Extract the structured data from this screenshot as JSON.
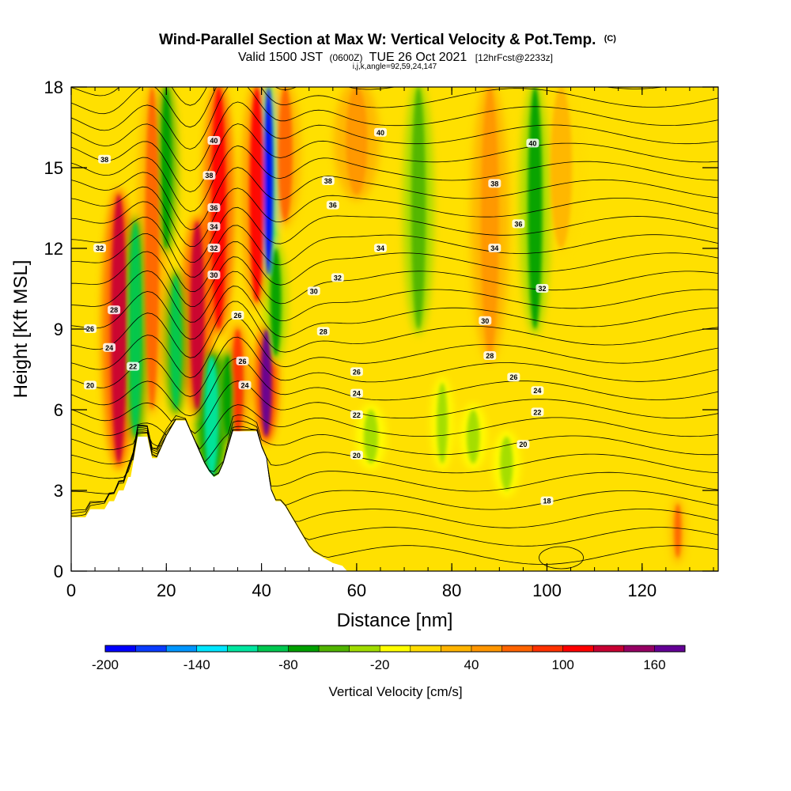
{
  "chart_data": {
    "type": "heatmap",
    "title": "Wind-Parallel Section at Max W: Vertical Velocity & Pot.Temp.",
    "title_suffix": "(C)",
    "subtitle_parts": {
      "valid": "Valid 1500 JST",
      "utc": "(0600Z)",
      "date": "TUE 26 Oct 2021",
      "fcst": "[12hrFcst@2233z]"
    },
    "subtitle2": "i,j,k,angle=92,59,24,147",
    "xlabel": "Distance [nm]",
    "ylabel": "Height [Kft MSL]",
    "xlim": [
      0,
      136
    ],
    "ylim": [
      0,
      18
    ],
    "x_ticks": [
      "0",
      "20",
      "40",
      "60",
      "80",
      "100",
      "120"
    ],
    "y_ticks": [
      "0",
      "3",
      "6",
      "9",
      "12",
      "15",
      "18"
    ],
    "colorbar": {
      "label": "Vertical Velocity [cm/s]",
      "range": [
        -200,
        180
      ],
      "tick_labels": [
        "-200",
        "-140",
        "-80",
        "-20",
        "40",
        "100",
        "160"
      ],
      "colors": [
        "#0000ff",
        "#0a3cff",
        "#0096ff",
        "#00e6ff",
        "#00e6a0",
        "#00c850",
        "#00a000",
        "#50b400",
        "#a0dc00",
        "#ffff00",
        "#ffdc00",
        "#ffb400",
        "#ff9600",
        "#ff6400",
        "#ff3200",
        "#ff0000",
        "#c80032",
        "#960064",
        "#640096"
      ]
    },
    "terrain": [
      [
        0,
        2
      ],
      [
        3,
        2
      ],
      [
        4,
        2.3
      ],
      [
        7,
        2.3
      ],
      [
        8,
        2.6
      ],
      [
        9,
        2.6
      ],
      [
        10,
        3
      ],
      [
        11,
        3
      ],
      [
        12,
        3.5
      ],
      [
        12.5,
        3.5
      ],
      [
        13,
        4
      ],
      [
        13.5,
        4.5
      ],
      [
        14,
        5
      ],
      [
        16,
        5
      ],
      [
        16.5,
        4.6
      ],
      [
        17,
        4.2
      ],
      [
        18,
        4.2
      ],
      [
        19,
        4.6
      ],
      [
        20,
        5
      ],
      [
        21,
        5.3
      ],
      [
        22,
        5.6
      ],
      [
        24,
        5.6
      ],
      [
        25,
        5.2
      ],
      [
        26,
        4.8
      ],
      [
        27,
        4.4
      ],
      [
        28,
        4.0
      ],
      [
        29,
        3.7
      ],
      [
        30,
        3.5
      ],
      [
        31,
        3.6
      ],
      [
        32,
        4.0
      ],
      [
        33,
        4.6
      ],
      [
        34,
        5.2
      ],
      [
        39,
        5.2
      ],
      [
        40,
        4.6
      ],
      [
        41,
        4.2
      ],
      [
        41.5,
        3.5
      ],
      [
        42,
        3.0
      ],
      [
        43,
        2.6
      ],
      [
        44,
        2.6
      ],
      [
        45,
        2.4
      ],
      [
        46,
        2.1
      ],
      [
        47,
        1.8
      ],
      [
        48,
        1.5
      ],
      [
        49,
        1.2
      ],
      [
        50,
        0.9
      ],
      [
        51,
        0.7
      ],
      [
        53,
        0.5
      ],
      [
        55,
        0.3
      ],
      [
        57,
        0.2
      ],
      [
        58,
        0
      ],
      [
        136,
        0
      ]
    ],
    "updrafts": [
      {
        "x": 10,
        "y0": 4,
        "y1": 14,
        "w": 120,
        "width": 2.2
      },
      {
        "x": 17,
        "y0": 6,
        "y1": 18,
        "w": 60,
        "width": 2.0
      },
      {
        "x": 26.5,
        "y0": 6,
        "y1": 13,
        "w": 130,
        "width": 2.0
      },
      {
        "x": 31,
        "y0": 9,
        "y1": 18,
        "w": 110,
        "width": 2.0
      },
      {
        "x": 35,
        "y0": 5,
        "y1": 9,
        "w": 90,
        "width": 1.6
      },
      {
        "x": 41,
        "y0": 5,
        "y1": 9,
        "w": 160,
        "width": 1.5
      },
      {
        "x": 39,
        "y0": 10,
        "y1": 18,
        "w": 100,
        "width": 2.0
      },
      {
        "x": 45,
        "y0": 13,
        "y1": 18,
        "w": 70,
        "width": 2.0
      },
      {
        "x": 60,
        "y0": 14,
        "y1": 18,
        "w": 45,
        "width": 3.0
      },
      {
        "x": 88,
        "y0": 8,
        "y1": 18,
        "w": 40,
        "width": 2.5
      },
      {
        "x": 103,
        "y0": 12,
        "y1": 18,
        "w": 35,
        "width": 3.0
      },
      {
        "x": 127.5,
        "y0": 0.5,
        "y1": 2.5,
        "w": 60,
        "width": 0.8
      }
    ],
    "downdrafts": [
      {
        "x": 13.5,
        "y0": 5,
        "y1": 13,
        "w": -90,
        "width": 1.8
      },
      {
        "x": 20,
        "y0": 12,
        "y1": 18,
        "w": -80,
        "width": 1.4
      },
      {
        "x": 22,
        "y0": 6,
        "y1": 11,
        "w": -90,
        "width": 1.6
      },
      {
        "x": 29.5,
        "y0": 3.5,
        "y1": 8,
        "w": -110,
        "width": 2.0
      },
      {
        "x": 33,
        "y0": 5,
        "y1": 8,
        "w": -80,
        "width": 1.5
      },
      {
        "x": 41.5,
        "y0": 11,
        "y1": 18,
        "w": -200,
        "width": 1.2
      },
      {
        "x": 43,
        "y0": 8,
        "y1": 12,
        "w": -70,
        "width": 1.5
      },
      {
        "x": 73,
        "y0": 9,
        "y1": 18,
        "w": -60,
        "width": 2.0
      },
      {
        "x": 97.5,
        "y0": 9,
        "y1": 18,
        "w": -70,
        "width": 2.0
      },
      {
        "x": 63,
        "y0": 4,
        "y1": 6,
        "w": -30,
        "width": 2.0
      },
      {
        "x": 84.5,
        "y0": 4,
        "y1": 6,
        "w": -35,
        "width": 1.8
      },
      {
        "x": 91.5,
        "y0": 3,
        "y1": 5,
        "w": -30,
        "width": 1.8
      },
      {
        "x": 78,
        "y0": 4,
        "y1": 7,
        "w": -25,
        "width": 1.5
      }
    ],
    "theta_labels": [
      {
        "text": "40",
        "x": 30,
        "y": 16
      },
      {
        "text": "38",
        "x": 29,
        "y": 14.7
      },
      {
        "text": "36",
        "x": 30,
        "y": 13.5
      },
      {
        "text": "34",
        "x": 30,
        "y": 12.8
      },
      {
        "text": "32",
        "x": 30,
        "y": 12.0
      },
      {
        "text": "30",
        "x": 30,
        "y": 11.0
      },
      {
        "text": "26",
        "x": 35,
        "y": 9.5
      },
      {
        "text": "26",
        "x": 36,
        "y": 7.8
      },
      {
        "text": "24",
        "x": 36.5,
        "y": 6.9
      },
      {
        "text": "38",
        "x": 7,
        "y": 15.3
      },
      {
        "text": "32",
        "x": 6,
        "y": 12.0
      },
      {
        "text": "28",
        "x": 9,
        "y": 9.7
      },
      {
        "text": "26",
        "x": 4,
        "y": 9.0
      },
      {
        "text": "24",
        "x": 8,
        "y": 8.3
      },
      {
        "text": "22",
        "x": 13,
        "y": 7.6
      },
      {
        "text": "20",
        "x": 4,
        "y": 6.9
      },
      {
        "text": "40",
        "x": 65,
        "y": 16.3
      },
      {
        "text": "38",
        "x": 54,
        "y": 14.5
      },
      {
        "text": "36",
        "x": 55,
        "y": 13.6
      },
      {
        "text": "34",
        "x": 65,
        "y": 12.0
      },
      {
        "text": "32",
        "x": 56,
        "y": 10.9
      },
      {
        "text": "30",
        "x": 51,
        "y": 10.4
      },
      {
        "text": "28",
        "x": 53,
        "y": 8.9
      },
      {
        "text": "26",
        "x": 60,
        "y": 7.4
      },
      {
        "text": "24",
        "x": 60,
        "y": 6.6
      },
      {
        "text": "22",
        "x": 60,
        "y": 5.8
      },
      {
        "text": "20",
        "x": 60,
        "y": 4.3
      },
      {
        "text": "40",
        "x": 97,
        "y": 15.9
      },
      {
        "text": "38",
        "x": 89,
        "y": 14.4
      },
      {
        "text": "36",
        "x": 94,
        "y": 12.9
      },
      {
        "text": "34",
        "x": 89,
        "y": 12.0
      },
      {
        "text": "32",
        "x": 99,
        "y": 10.5
      },
      {
        "text": "30",
        "x": 87,
        "y": 9.3
      },
      {
        "text": "28",
        "x": 88,
        "y": 8.0
      },
      {
        "text": "26",
        "x": 93,
        "y": 7.2
      },
      {
        "text": "24",
        "x": 98,
        "y": 6.7
      },
      {
        "text": "22",
        "x": 98,
        "y": 5.9
      },
      {
        "text": "20",
        "x": 95,
        "y": 4.7
      },
      {
        "text": "18",
        "x": 100,
        "y": 2.6
      }
    ],
    "grid": false
  }
}
